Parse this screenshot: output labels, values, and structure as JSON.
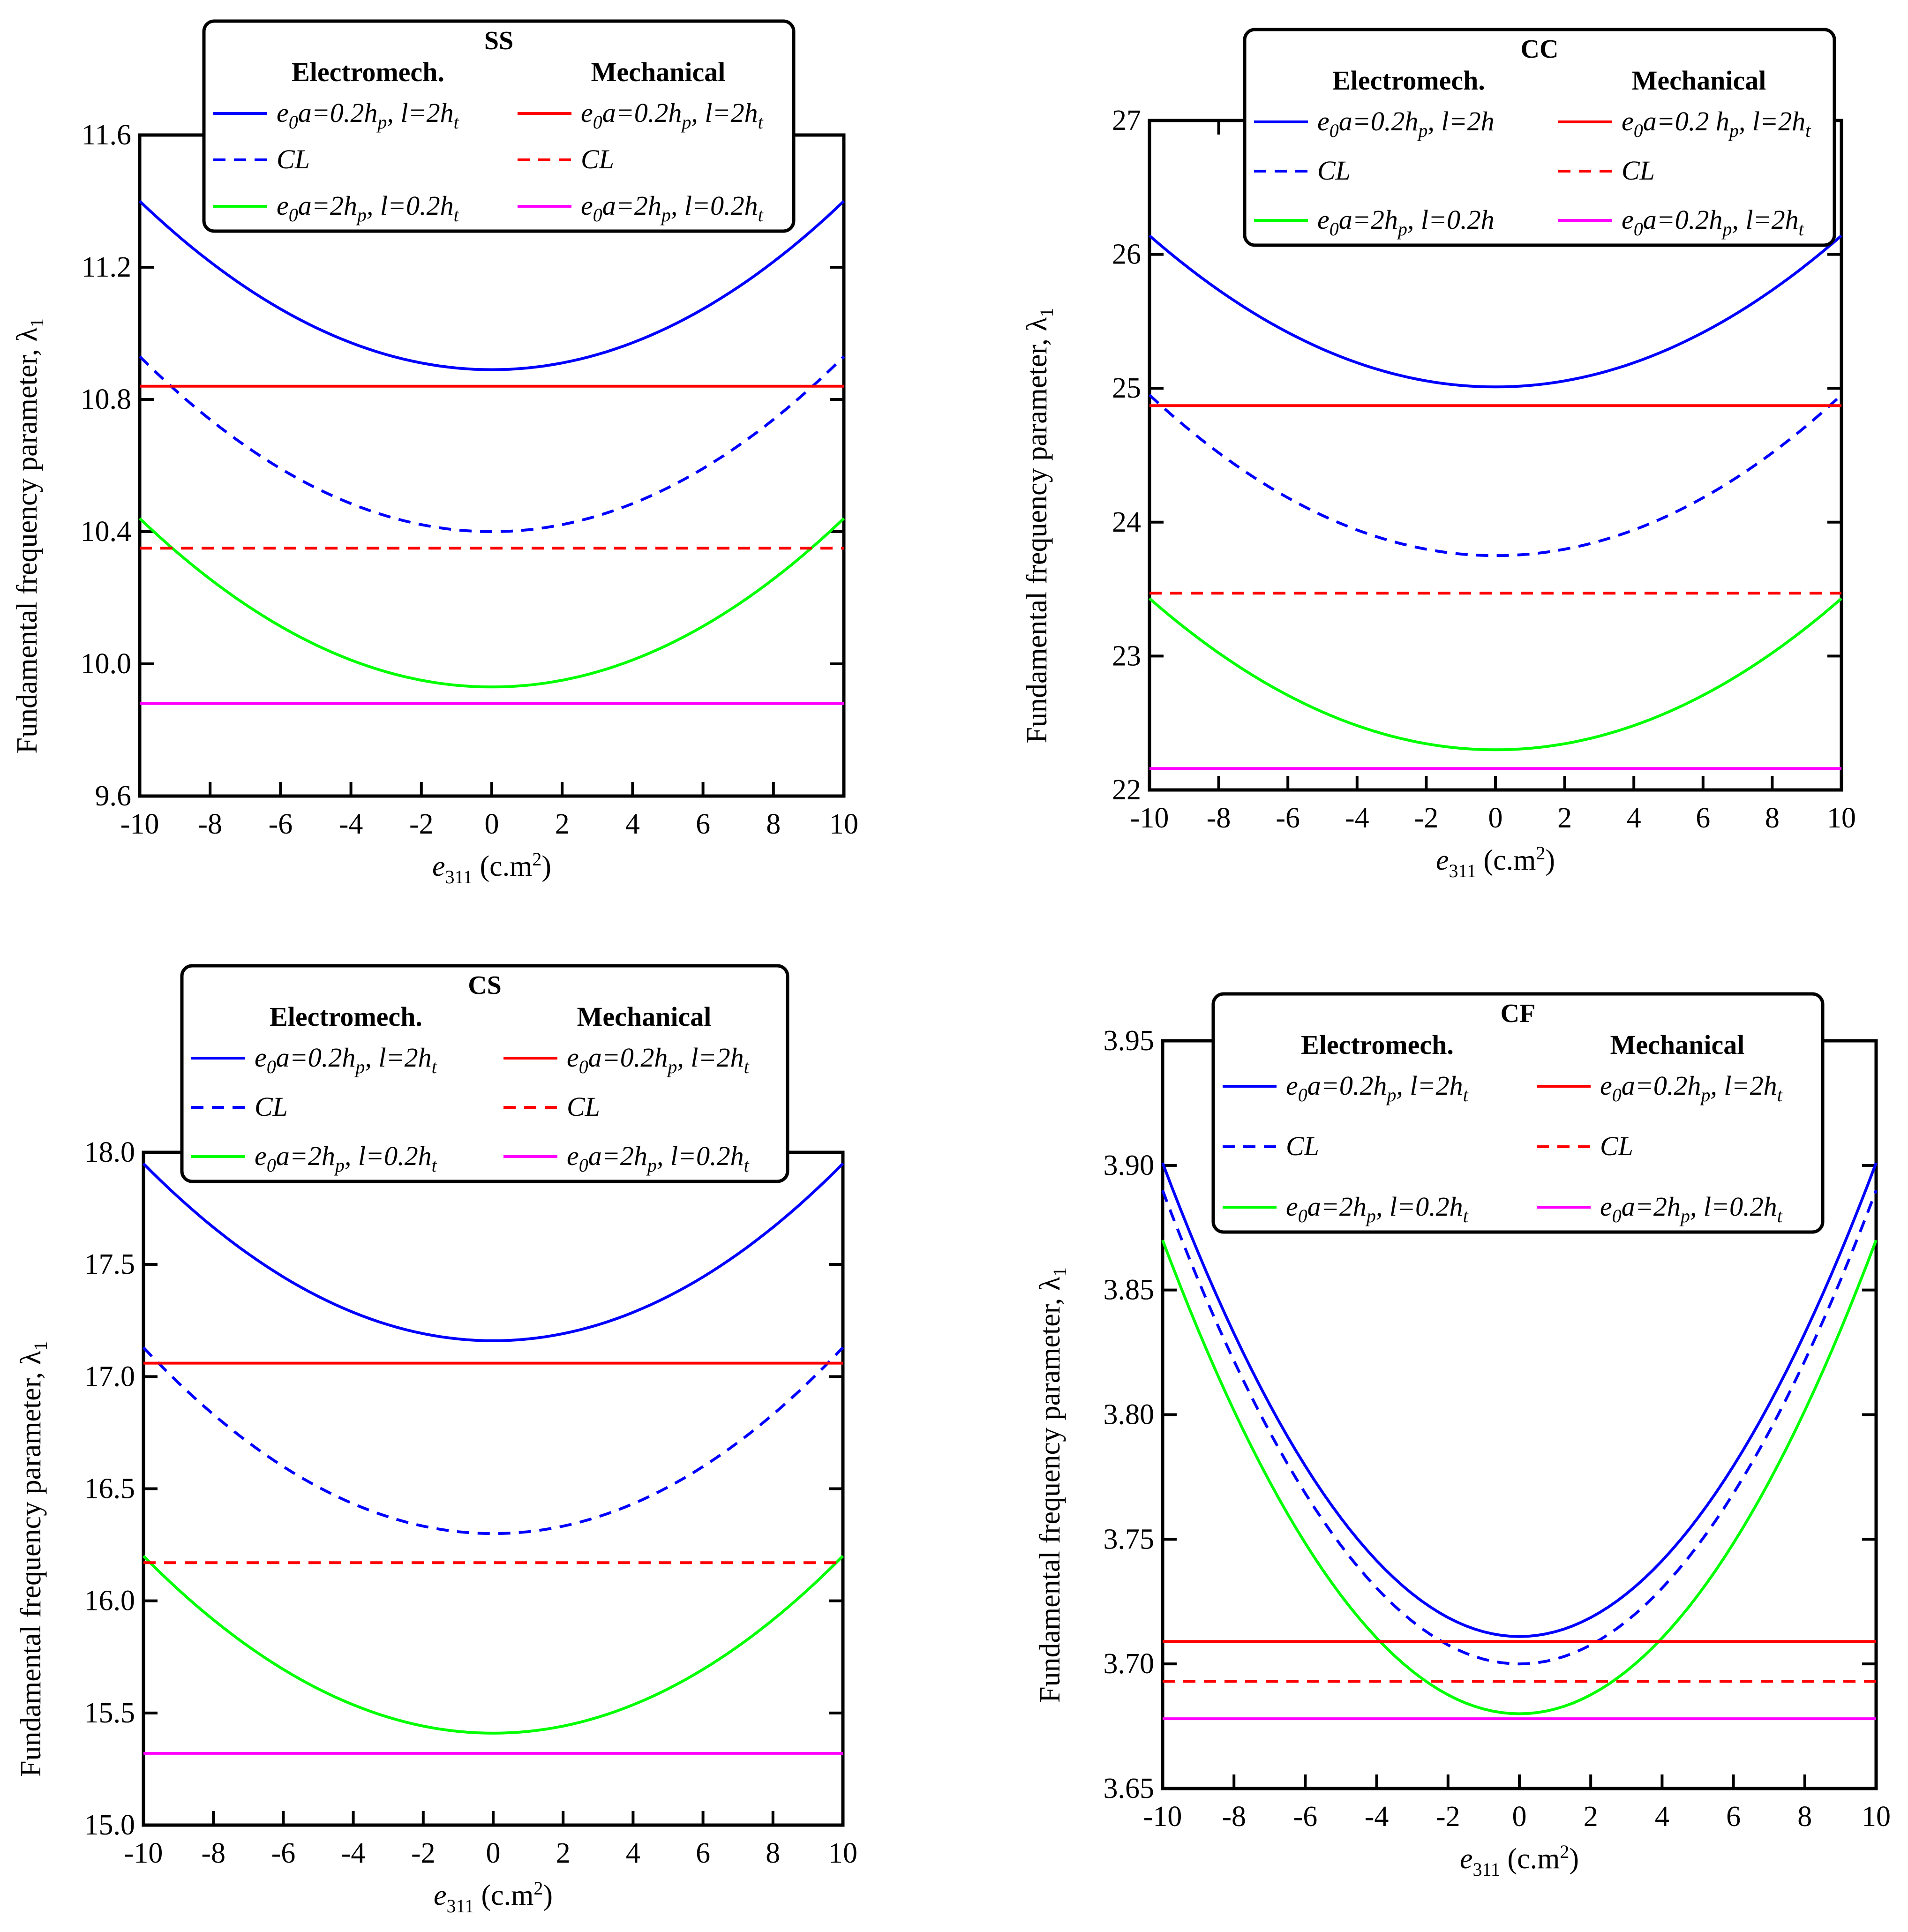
{
  "chart_data": [
    {
      "type": "line",
      "title": "SS",
      "xlabel": "e311 (c.m2)",
      "xlabel_main": "e",
      "xlabel_sub": "311",
      "xlabel_unit": " (c.m",
      "xlabel_sup": "2",
      "xlabel_close": ")",
      "ylabel": "Fundamental frequency parameter, λ1",
      "ylabel_main": "Fundamental frequency parameter, λ",
      "ylabel_sub": "1",
      "xlim": [
        -10,
        10
      ],
      "ylim": [
        9.6,
        11.6
      ],
      "xticks": [
        -10,
        -8,
        -6,
        -4,
        -2,
        0,
        2,
        4,
        6,
        8,
        10
      ],
      "yticks": [
        9.6,
        10.0,
        10.4,
        10.8,
        11.2,
        11.6
      ],
      "ytick_labels": [
        "9.6",
        "10.0",
        "10.4",
        "10.8",
        "11.2",
        "11.6"
      ],
      "legend_headers": [
        "Electromech.",
        "Mechanical"
      ],
      "series": [
        {
          "name": "e0a=0.2hp, l=2ht",
          "group": "Electromech.",
          "color": "#0000ff",
          "dash": "solid",
          "shape": "parabola",
          "min": 10.89,
          "max": 11.4
        },
        {
          "name": "CL",
          "group": "Electromech.",
          "color": "#0000ff",
          "dash": "dashed",
          "shape": "parabola",
          "min": 10.4,
          "max": 10.93
        },
        {
          "name": "e0a=2hp, l=0.2ht",
          "group": "Electromech.",
          "color": "#00ff00",
          "dash": "solid",
          "shape": "parabola",
          "min": 9.93,
          "max": 10.44
        },
        {
          "name": "e0a=0.2hp, l=2ht",
          "group": "Mechanical",
          "color": "#ff0000",
          "dash": "solid",
          "shape": "flat",
          "min": 10.84,
          "max": 10.84
        },
        {
          "name": "CL",
          "group": "Mechanical",
          "color": "#ff0000",
          "dash": "dashed",
          "shape": "flat",
          "min": 10.35,
          "max": 10.35
        },
        {
          "name": "e0a=2hp, l=0.2ht",
          "group": "Mechanical",
          "color": "#ff00ff",
          "dash": "solid",
          "shape": "flat",
          "min": 9.88,
          "max": 9.88
        }
      ]
    },
    {
      "type": "line",
      "title": "CC",
      "xlabel": "e311 (c.m2)",
      "xlabel_main": "e",
      "xlabel_sub": "311",
      "xlabel_unit": " (c.m",
      "xlabel_sup": "2",
      "xlabel_close": ")",
      "ylabel": "Fundamental frequency parameter, λ1",
      "ylabel_main": "Fundamental frequency parameter, λ",
      "ylabel_sub": "1",
      "xlim": [
        -10,
        10
      ],
      "ylim": [
        22,
        27
      ],
      "xticks": [
        -10,
        -8,
        -6,
        -4,
        -2,
        0,
        2,
        4,
        6,
        8,
        10
      ],
      "yticks": [
        22,
        23,
        24,
        25,
        26,
        27
      ],
      "ytick_labels": [
        "22",
        "23",
        "24",
        "25",
        "26",
        "27"
      ],
      "legend_headers": [
        "Electromech.",
        "Mechanical"
      ],
      "series": [
        {
          "name": "e0a=0.2hp, l=2h",
          "group": "Electromech.",
          "color": "#0000ff",
          "dash": "solid",
          "shape": "parabola",
          "min": 25.01,
          "max": 26.14
        },
        {
          "name": "CL",
          "group": "Electromech.",
          "color": "#0000ff",
          "dash": "dashed",
          "shape": "parabola",
          "min": 23.75,
          "max": 24.95
        },
        {
          "name": "e0a=2hp, l=0.2h",
          "group": "Electromech.",
          "color": "#00ff00",
          "dash": "solid",
          "shape": "parabola",
          "min": 22.3,
          "max": 23.43
        },
        {
          "name": "e0a=0.2 hp, l=2ht",
          "group": "Mechanical",
          "color": "#ff0000",
          "dash": "solid",
          "shape": "flat",
          "min": 24.87,
          "max": 24.87
        },
        {
          "name": "CL",
          "group": "Mechanical",
          "color": "#ff0000",
          "dash": "dashed",
          "shape": "flat",
          "min": 23.47,
          "max": 23.47
        },
        {
          "name": "e0a=0.2hp, l=2ht",
          "group": "Mechanical",
          "color": "#ff00ff",
          "dash": "solid",
          "shape": "flat",
          "min": 22.16,
          "max": 22.16
        }
      ]
    },
    {
      "type": "line",
      "title": "CS",
      "xlabel": "e311 (c.m2)",
      "xlabel_main": "e",
      "xlabel_sub": "311",
      "xlabel_unit": " (c.m",
      "xlabel_sup": "2",
      "xlabel_close": ")",
      "ylabel": "Fundamental frequency parameter, λ1",
      "ylabel_main": "Fundamental frequency parameter, λ",
      "ylabel_sub": "1",
      "xlim": [
        -10,
        10
      ],
      "ylim": [
        15.0,
        18.0
      ],
      "xticks": [
        -10,
        -8,
        -6,
        -4,
        -2,
        0,
        2,
        4,
        6,
        8,
        10
      ],
      "yticks": [
        15.0,
        15.5,
        16.0,
        16.5,
        17.0,
        17.5,
        18.0
      ],
      "ytick_labels": [
        "15.0",
        "15.5",
        "16.0",
        "16.5",
        "17.0",
        "17.5",
        "18.0"
      ],
      "legend_headers": [
        "Electromech.",
        "Mechanical"
      ],
      "series": [
        {
          "name": "e0a=0.2hp, l=2ht",
          "group": "Electromech.",
          "color": "#0000ff",
          "dash": "solid",
          "shape": "parabola",
          "min": 17.16,
          "max": 17.95
        },
        {
          "name": "CL",
          "group": "Electromech.",
          "color": "#0000ff",
          "dash": "dashed",
          "shape": "parabola",
          "min": 16.3,
          "max": 17.13
        },
        {
          "name": "e0a=2hp, l=0.2ht",
          "group": "Electromech.",
          "color": "#00ff00",
          "dash": "solid",
          "shape": "parabola",
          "min": 15.41,
          "max": 16.2
        },
        {
          "name": "e0a=0.2hp, l=2ht",
          "group": "Mechanical",
          "color": "#ff0000",
          "dash": "solid",
          "shape": "flat",
          "min": 17.06,
          "max": 17.06
        },
        {
          "name": "CL",
          "group": "Mechanical",
          "color": "#ff0000",
          "dash": "dashed",
          "shape": "flat",
          "min": 16.17,
          "max": 16.17
        },
        {
          "name": "e0a=2hp, l=0.2ht",
          "group": "Mechanical",
          "color": "#ff00ff",
          "dash": "solid",
          "shape": "flat",
          "min": 15.32,
          "max": 15.32
        }
      ]
    },
    {
      "type": "line",
      "title": "CF",
      "xlabel": "e311 (c.m2)",
      "xlabel_main": "e",
      "xlabel_sub": "311",
      "xlabel_unit": " (c.m",
      "xlabel_sup": "2",
      "xlabel_close": ")",
      "ylabel": "Fundamental frequency parameter, λ1",
      "ylabel_main": "Fundamental frequency parameter, λ",
      "ylabel_sub": "1",
      "xlim": [
        -10,
        10
      ],
      "ylim": [
        3.65,
        3.95
      ],
      "xticks": [
        -10,
        -8,
        -6,
        -4,
        -2,
        0,
        2,
        4,
        6,
        8,
        10
      ],
      "yticks": [
        3.65,
        3.7,
        3.75,
        3.8,
        3.85,
        3.9,
        3.95
      ],
      "ytick_labels": [
        "3.65",
        "3.70",
        "3.75",
        "3.80",
        "3.85",
        "3.90",
        "3.95"
      ],
      "legend_headers": [
        "Electromech.",
        "Mechanical"
      ],
      "series": [
        {
          "name": "e0a=0.2hp, l=2ht",
          "group": "Electromech.",
          "color": "#0000ff",
          "dash": "solid",
          "shape": "parabola",
          "min": 3.711,
          "max": 3.901
        },
        {
          "name": "CL",
          "group": "Electromech.",
          "color": "#0000ff",
          "dash": "dashed",
          "shape": "parabola",
          "min": 3.7,
          "max": 3.89
        },
        {
          "name": "e0a=2hp, l=0.2ht",
          "group": "Electromech.",
          "color": "#00ff00",
          "dash": "solid",
          "shape": "parabola",
          "min": 3.68,
          "max": 3.87
        },
        {
          "name": "e0a=0.2hp, l=2ht",
          "group": "Mechanical",
          "color": "#ff0000",
          "dash": "solid",
          "shape": "flat",
          "min": 3.709,
          "max": 3.709
        },
        {
          "name": "CL",
          "group": "Mechanical",
          "color": "#ff0000",
          "dash": "dashed",
          "shape": "flat",
          "min": 3.693,
          "max": 3.693
        },
        {
          "name": "e0a=2hp, l=0.2ht",
          "group": "Mechanical",
          "color": "#ff00ff",
          "dash": "solid",
          "shape": "flat",
          "min": 3.678,
          "max": 3.678
        }
      ]
    }
  ]
}
